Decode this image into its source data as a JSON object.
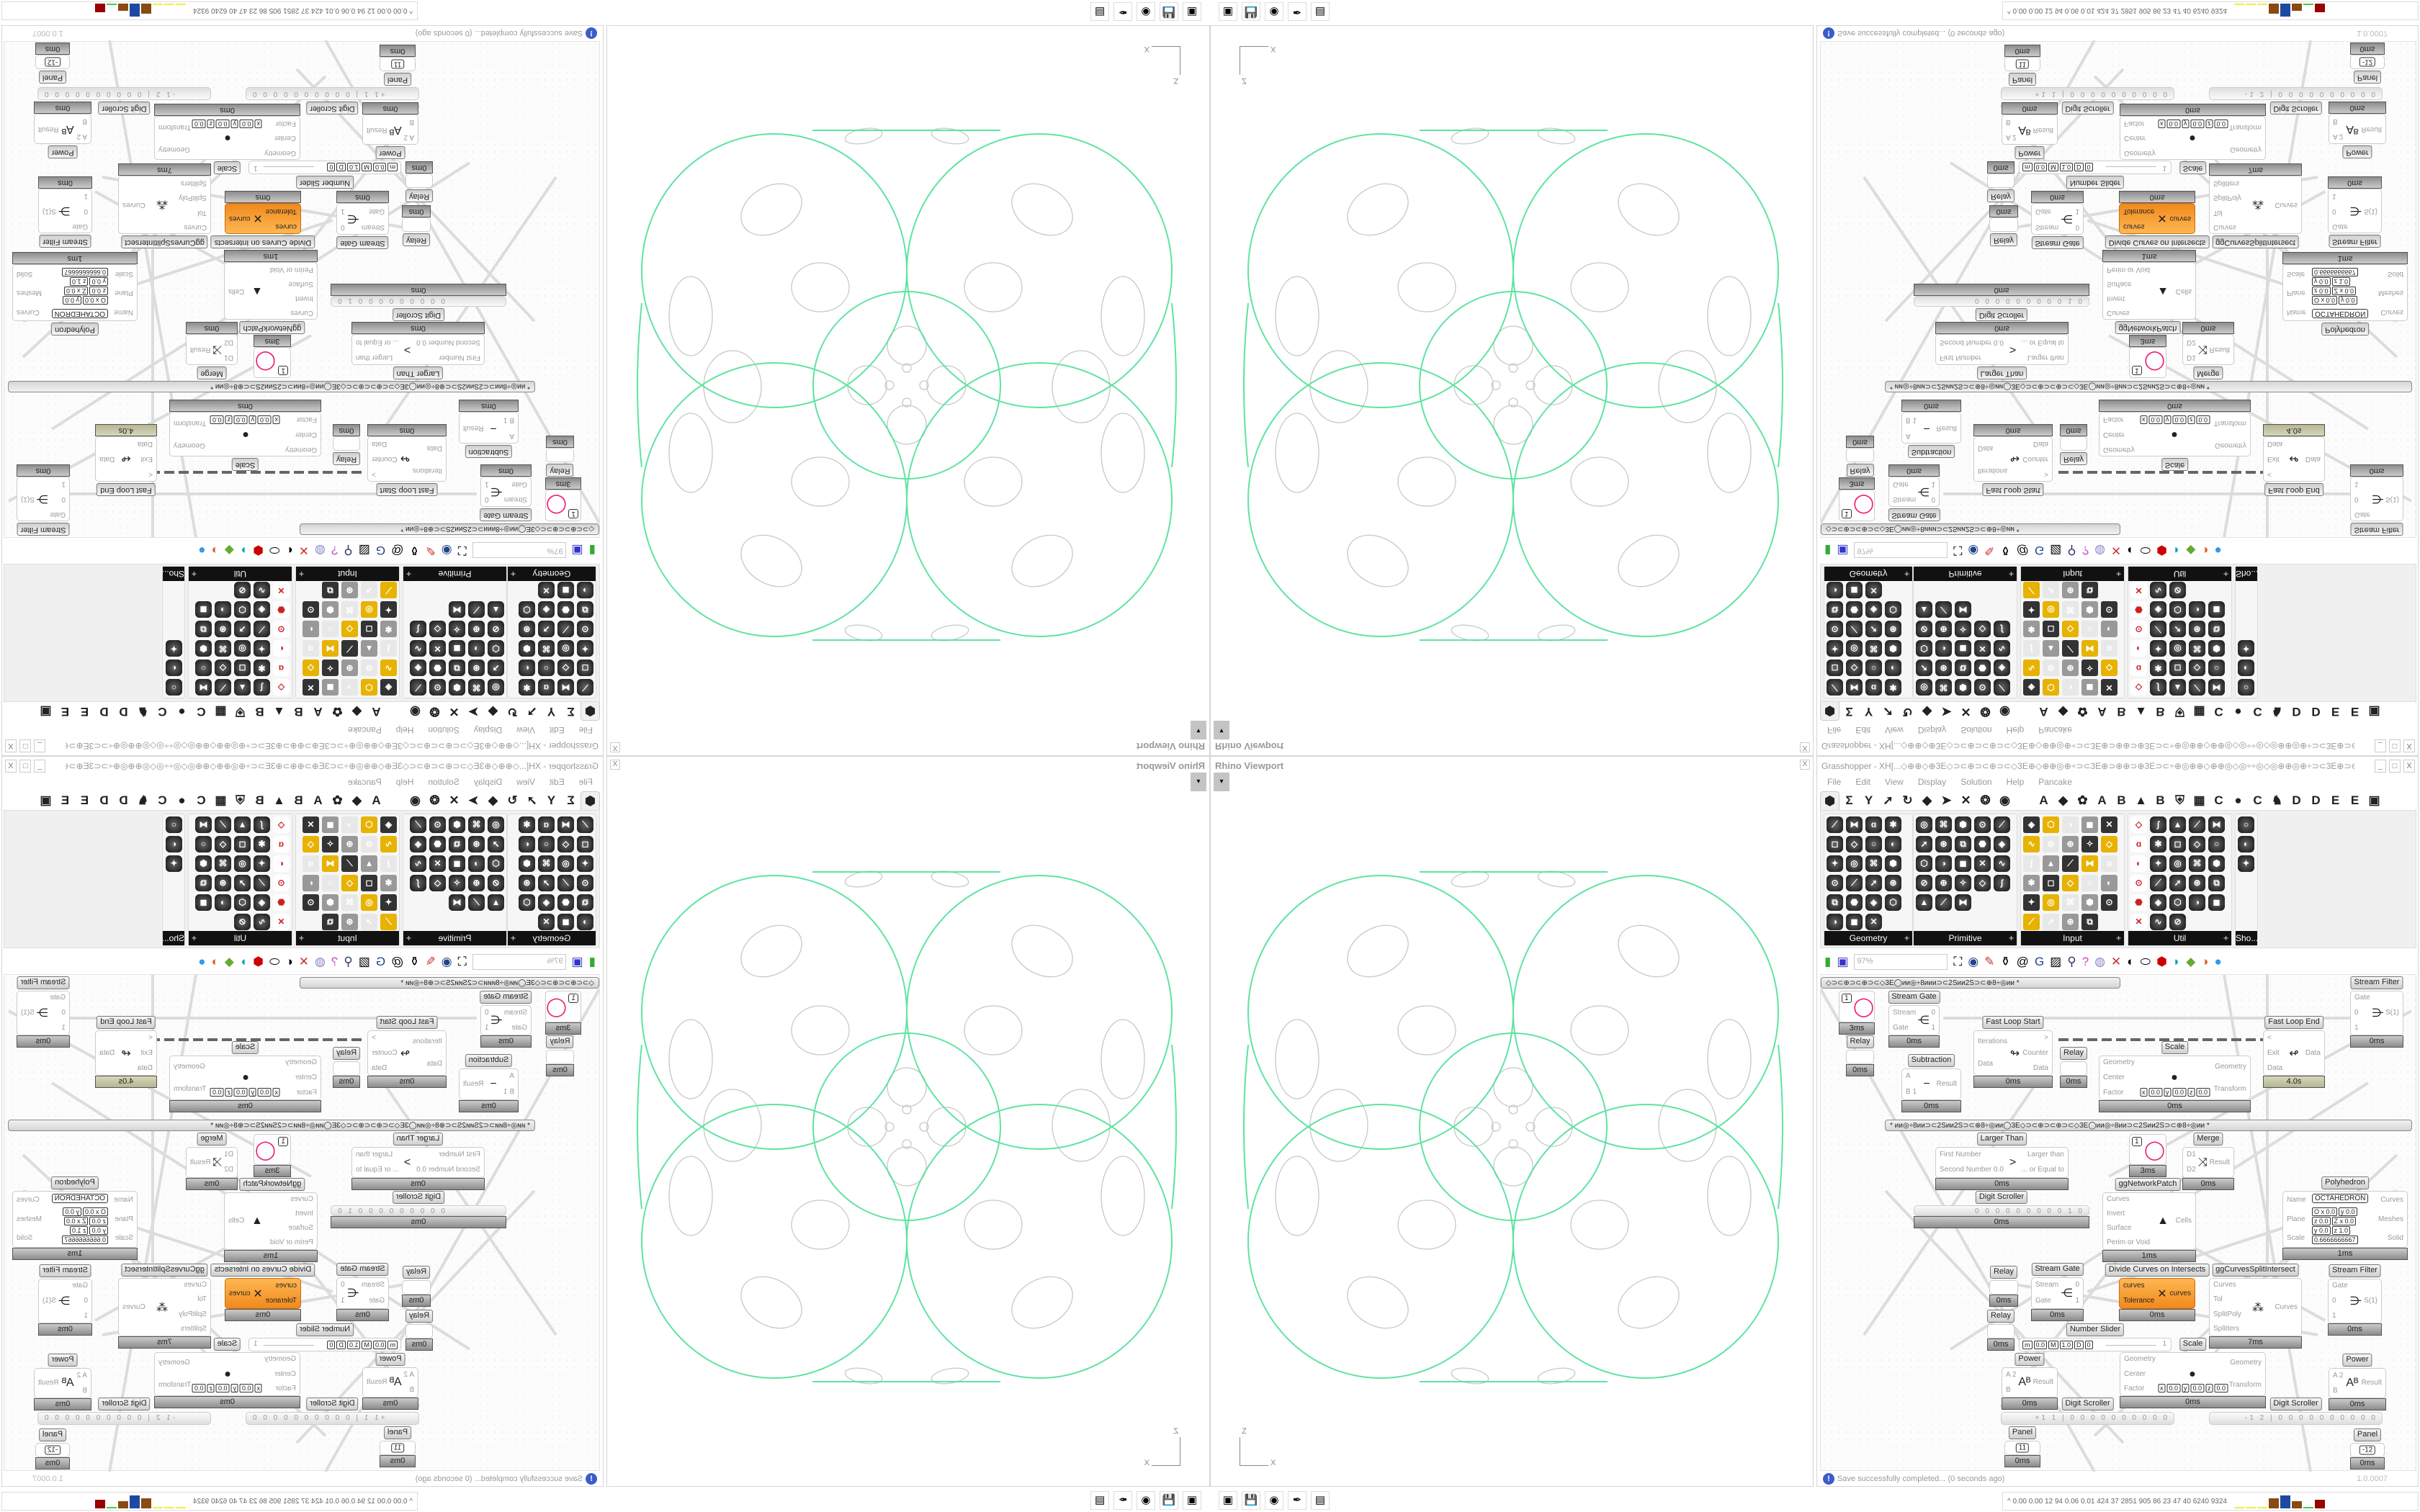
{
  "viewport": {
    "title": "Rhino Viewport",
    "close": "X",
    "dropdown": "▾",
    "axis_z": "Z",
    "axis_x": "X",
    "curve_color": "#5fe3a1",
    "ellipse_color": "#c8c8c8"
  },
  "gh": {
    "title": "Grasshopper - XH[...◇⊕⊕◇⊕3E◇⊃⊂⊕⊃⊂⊕⊃⊂◇3E⊕◇⊕⊕◎⊕÷⊃⊂3E⊕⊃⊕⊕⊃⊕3E⊃⊂÷⊕◎⊕⊕◇⊕⊕◎◇◎÷÷◎◇◎⊕⊕◎⊕÷⊃⊂3E⊕⊃⊕...",
    "window_buttons": [
      "_",
      "□",
      "X"
    ],
    "menu": [
      "File",
      "Edit",
      "View",
      "Display",
      "Solution",
      "Help",
      "Pancake"
    ],
    "tab_icons": [
      "⬢",
      "Σ",
      "Y",
      "➚",
      "↻",
      "◆",
      "➤",
      "✕",
      "❂",
      "◉",
      "",
      "A",
      "◆",
      "✿",
      "A",
      "B",
      "▲",
      "B",
      "⛨",
      "▦",
      "C",
      "●",
      "C",
      "♞",
      "D",
      "D",
      "E",
      "E",
      "▣"
    ],
    "palette_panels": [
      {
        "label": "Geometry",
        "plus": "+"
      },
      {
        "label": "Primitive",
        "plus": "+"
      },
      {
        "label": "Input",
        "plus": "+"
      },
      {
        "label": "Util",
        "plus": "+"
      },
      {
        "label": "Sho..."
      }
    ],
    "toolbar": {
      "zoom": "97%"
    },
    "canvas": {
      "groups": [
        "◇⊃⊂⊕⊃⊂⊕⊃⊂◇3E◯ии◎÷8иии⊃⊂2Sии2S⊃⊂⊕8÷◎ии     *",
        "*     ии◎÷8ии⊃⊂2Sии2S⊃⊂⊕8÷◎ии◯3E◇⊃⊂⊕⊃⊂⊕⊃⊂◇3E◯ии◎÷8ии⊃⊂2Sии2S⊃⊂⊕8÷◎ии     *"
      ],
      "components": [
        {
          "value": "1",
          "icon": "◯",
          "time": "3ms"
        },
        {
          "label": "Relay",
          "time": "0ms"
        },
        {
          "label": "Stream Gate",
          "inputs": [
            "Stream",
            "Gate"
          ],
          "outputs": [
            "0",
            "1"
          ],
          "icon": "⋲",
          "time": "0ms"
        },
        {
          "label": "Fast Loop Start",
          "inputs": [
            "Iterations",
            "Data"
          ],
          "outputs": [
            ">",
            "Counter",
            "Data"
          ],
          "icon": "↬",
          "time": "0ms"
        },
        {
          "label": "Fast Loop End",
          "inputs": [
            "<",
            "Exit",
            "Data"
          ],
          "outputs": [
            "Data"
          ],
          "icon": "↫",
          "time": "4.0s"
        },
        {
          "label": "Stream Filter",
          "inputs": [
            "Gate",
            "0",
            "1"
          ],
          "outputs": [
            "S(1)"
          ],
          "icon": "⋺",
          "time": "0ms"
        },
        {
          "label": "Scale",
          "inputs": [
            "Geometry",
            "Center",
            "Factor"
          ],
          "outputs": [
            "Geometry",
            "Transform"
          ],
          "fields": [
            "x",
            "0.0",
            "y",
            "0.0",
            "z",
            "0.0"
          ],
          "icon": "●",
          "time": "0ms"
        },
        {
          "label": "Relay",
          "time": "0ms"
        },
        {
          "label": "Subtraction",
          "inputs": [
            "A",
            "B 1"
          ],
          "outputs": [
            "Result"
          ],
          "icon": "−",
          "time": "0ms"
        },
        {
          "label": "Larger Than",
          "inputs": [
            "First Number",
            "Second Number 0.0"
          ],
          "outputs": [
            "Larger than",
            "... or Equal to"
          ],
          "icon": ">",
          "time": "0ms"
        },
        {
          "value": "1",
          "icon": "◯",
          "time": "3ms",
          "label_below": "ggNetworkPatch"
        },
        {
          "label": "Merge",
          "inputs": [
            "D1",
            "D2"
          ],
          "outputs": [
            "Result"
          ],
          "icon": "⤨",
          "time": "0ms"
        },
        {
          "label": "Digit Scroller",
          "digits": "0 0 0 0 0 0 0 0 0 1 0",
          "time": "0ms"
        },
        {
          "inputs": [
            "Curves",
            "Invert",
            "Surface",
            "Perim or Void"
          ],
          "outputs": [
            "Cells"
          ],
          "icon": "▲",
          "time": "1ms"
        },
        {
          "label": "Polyhedron",
          "inputs": [
            "Name",
            "Plane",
            "Scale"
          ],
          "outputs": [
            "Curves",
            "Meshes",
            "Solid"
          ],
          "value": "OCTAHEDRON",
          "fields": [
            "O x 0.0",
            "y 0.0",
            "z 0.0",
            "Z x 0.0",
            "y 0.0",
            "z 1.0",
            "0.6666666667"
          ],
          "time": "1ms"
        },
        {
          "label": "Relay",
          "time": "0ms"
        },
        {
          "label": "Stream Gate",
          "inputs": [
            "Stream",
            "Gate"
          ],
          "outputs": [
            "0",
            "1"
          ],
          "icon": "⋲",
          "time": "0ms"
        },
        {
          "label": "Divide Curves on Intersects",
          "inputs": [
            "curves",
            "Tolerance"
          ],
          "outputs": [
            "curves"
          ],
          "icon": "✕",
          "time": "0ms"
        },
        {
          "label": "ggCurvesSplitIntersect",
          "inputs": [
            "Curves",
            "Tol",
            "SplitPoly",
            "Splitters"
          ],
          "outputs": [
            "Curves"
          ],
          "icon": "⁂",
          "time": "7ms"
        },
        {
          "label": "Stream Filter",
          "inputs": [
            "Gate",
            "0",
            "1"
          ],
          "outputs": [
            "S(1)"
          ],
          "icon": "⋺",
          "time": "0ms"
        },
        {
          "label": "Relay",
          "time": "0ms"
        },
        {
          "label": "Number Slider",
          "fields": [
            "m",
            "0.0",
            "M",
            "1.0",
            "D",
            "0"
          ],
          "slider_value": "1"
        },
        {
          "label": "Scale",
          "inputs": [
            "Geometry",
            "Center",
            "Factor"
          ],
          "outputs": [
            "Geometry",
            "Transform"
          ],
          "fields": [
            "x",
            "0.0",
            "y",
            "0.0",
            "z",
            "0.0"
          ],
          "icon": "●",
          "time": "0ms"
        },
        {
          "label": "Power",
          "inputs": [
            "A 2",
            "B"
          ],
          "outputs": [
            "Result"
          ],
          "icon": "Aᴮ",
          "time": "0ms"
        },
        {
          "label": "Power",
          "inputs": [
            "A 2",
            "B"
          ],
          "outputs": [
            "Result"
          ],
          "icon": "Aᴮ",
          "time": "0ms"
        },
        {
          "label": "Digit Scroller",
          "digits": "+1 1 | 0 0 0 0 0 0 0 0 0 0"
        },
        {
          "label": "Digit Scroller",
          "digits": "-1 2 | 0 0 0 0 0 0 0 0 0 0"
        },
        {
          "label": "Panel",
          "value": "11",
          "time": "0ms"
        },
        {
          "label": "Panel",
          "value": "-12",
          "time": "0ms"
        }
      ]
    },
    "status": {
      "message": "Save successfully completed... (0 seconds ago)",
      "version": "1.0.0007",
      "icon": "!"
    }
  },
  "taskbar": {
    "icons": [
      "terminal-icon",
      "floppy-64-icon",
      "firefox-icon",
      "inkscape-icon",
      "calculator-icon"
    ],
    "stats": "^  0.00 0.00  12  94  0.06 0.01  424  37  2851 905  86  23  47  40  6240 9324"
  }
}
